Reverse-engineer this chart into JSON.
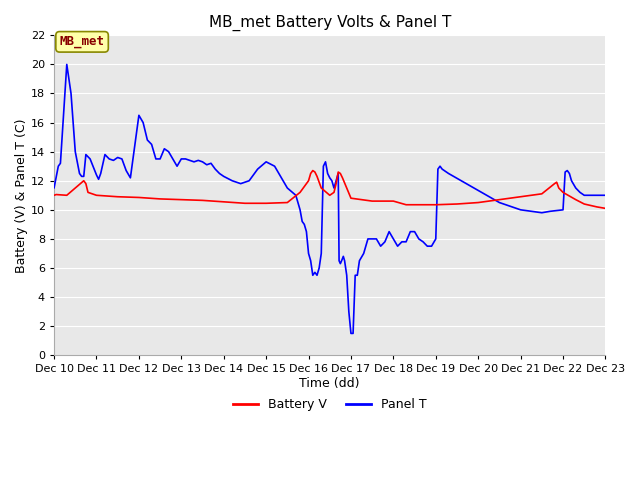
{
  "title": "MB_met Battery Volts & Panel T",
  "xlabel": "Time (dd)",
  "ylabel": "Battery (V) & Panel T (C)",
  "ylim": [
    0,
    22
  ],
  "yticks": [
    0,
    2,
    4,
    6,
    8,
    10,
    12,
    14,
    16,
    18,
    20,
    22
  ],
  "xlim": [
    0,
    13
  ],
  "xtick_labels": [
    "Dec 10",
    "Dec 11",
    "Dec 12",
    "Dec 13",
    "Dec 14",
    "Dec 15",
    "Dec 16",
    "Dec 17",
    "Dec 18",
    "Dec 19",
    "Dec 20",
    "Dec 21",
    "Dec 22",
    "Dec 23"
  ],
  "fig_bg_color": "#ffffff",
  "plot_bg_color": "#e8e8e8",
  "battery_color": "#ff0000",
  "panel_color": "#0000ff",
  "legend_label_battery": "Battery V",
  "legend_label_panel": "Panel T",
  "watermark_text": "MB_met",
  "watermark_bg": "#ffffaa",
  "watermark_border": "#888800",
  "watermark_text_color": "#880000",
  "title_fontsize": 11,
  "axis_label_fontsize": 9,
  "tick_fontsize": 8,
  "legend_fontsize": 9,
  "battery_pts": [
    [
      0.0,
      11.0
    ],
    [
      0.05,
      11.05
    ],
    [
      0.3,
      11.0
    ],
    [
      0.7,
      12.0
    ],
    [
      0.75,
      11.8
    ],
    [
      0.8,
      11.2
    ],
    [
      1.0,
      11.0
    ],
    [
      1.5,
      10.9
    ],
    [
      2.0,
      10.85
    ],
    [
      2.5,
      10.75
    ],
    [
      3.0,
      10.7
    ],
    [
      3.5,
      10.65
    ],
    [
      4.0,
      10.55
    ],
    [
      4.5,
      10.45
    ],
    [
      5.0,
      10.45
    ],
    [
      5.5,
      10.5
    ],
    [
      5.8,
      11.2
    ],
    [
      6.0,
      12.0
    ],
    [
      6.05,
      12.5
    ],
    [
      6.1,
      12.7
    ],
    [
      6.15,
      12.6
    ],
    [
      6.2,
      12.3
    ],
    [
      6.3,
      11.5
    ],
    [
      6.5,
      11.0
    ],
    [
      6.6,
      11.2
    ],
    [
      6.65,
      11.8
    ],
    [
      6.7,
      12.6
    ],
    [
      6.75,
      12.5
    ],
    [
      6.8,
      12.2
    ],
    [
      6.9,
      11.5
    ],
    [
      7.0,
      10.8
    ],
    [
      7.5,
      10.6
    ],
    [
      8.0,
      10.6
    ],
    [
      8.3,
      10.35
    ],
    [
      8.5,
      10.35
    ],
    [
      9.0,
      10.35
    ],
    [
      9.5,
      10.4
    ],
    [
      10.0,
      10.5
    ],
    [
      10.5,
      10.7
    ],
    [
      11.0,
      10.9
    ],
    [
      11.5,
      11.1
    ],
    [
      11.8,
      11.8
    ],
    [
      11.85,
      11.9
    ],
    [
      11.9,
      11.5
    ],
    [
      12.0,
      11.2
    ],
    [
      12.3,
      10.7
    ],
    [
      12.5,
      10.4
    ],
    [
      12.8,
      10.2
    ],
    [
      13.0,
      10.1
    ]
  ],
  "panel_pts": [
    [
      0.0,
      11.5
    ],
    [
      0.1,
      13.0
    ],
    [
      0.15,
      13.2
    ],
    [
      0.3,
      20.0
    ],
    [
      0.4,
      18.0
    ],
    [
      0.5,
      14.0
    ],
    [
      0.6,
      12.5
    ],
    [
      0.65,
      12.3
    ],
    [
      0.7,
      12.3
    ],
    [
      0.75,
      13.8
    ],
    [
      0.85,
      13.5
    ],
    [
      1.0,
      12.4
    ],
    [
      1.05,
      12.1
    ],
    [
      1.1,
      12.5
    ],
    [
      1.2,
      13.8
    ],
    [
      1.3,
      13.5
    ],
    [
      1.4,
      13.4
    ],
    [
      1.5,
      13.6
    ],
    [
      1.6,
      13.5
    ],
    [
      1.7,
      12.7
    ],
    [
      1.8,
      12.2
    ],
    [
      2.0,
      16.5
    ],
    [
      2.1,
      16.0
    ],
    [
      2.2,
      14.8
    ],
    [
      2.3,
      14.5
    ],
    [
      2.4,
      13.5
    ],
    [
      2.5,
      13.5
    ],
    [
      2.6,
      14.2
    ],
    [
      2.7,
      14.0
    ],
    [
      2.8,
      13.5
    ],
    [
      2.9,
      13.0
    ],
    [
      3.0,
      13.5
    ],
    [
      3.1,
      13.5
    ],
    [
      3.2,
      13.4
    ],
    [
      3.3,
      13.3
    ],
    [
      3.4,
      13.4
    ],
    [
      3.5,
      13.3
    ],
    [
      3.6,
      13.1
    ],
    [
      3.7,
      13.2
    ],
    [
      3.8,
      12.8
    ],
    [
      3.9,
      12.5
    ],
    [
      4.0,
      12.3
    ],
    [
      4.2,
      12.0
    ],
    [
      4.4,
      11.8
    ],
    [
      4.6,
      12.0
    ],
    [
      4.8,
      12.8
    ],
    [
      5.0,
      13.3
    ],
    [
      5.2,
      13.0
    ],
    [
      5.3,
      12.5
    ],
    [
      5.4,
      12.0
    ],
    [
      5.5,
      11.5
    ],
    [
      5.7,
      11.0
    ],
    [
      5.8,
      10.0
    ],
    [
      5.85,
      9.2
    ],
    [
      5.9,
      9.0
    ],
    [
      5.95,
      8.5
    ],
    [
      6.0,
      7.0
    ],
    [
      6.05,
      6.5
    ],
    [
      6.1,
      5.5
    ],
    [
      6.15,
      5.7
    ],
    [
      6.2,
      5.5
    ],
    [
      6.25,
      6.0
    ],
    [
      6.3,
      7.0
    ],
    [
      6.35,
      13.0
    ],
    [
      6.4,
      13.3
    ],
    [
      6.45,
      12.5
    ],
    [
      6.5,
      12.2
    ],
    [
      6.55,
      12.0
    ],
    [
      6.6,
      11.5
    ],
    [
      6.65,
      12.0
    ],
    [
      6.7,
      12.5
    ],
    [
      6.72,
      6.5
    ],
    [
      6.75,
      6.3
    ],
    [
      6.78,
      6.5
    ],
    [
      6.82,
      6.8
    ],
    [
      6.85,
      6.5
    ],
    [
      6.9,
      5.5
    ],
    [
      6.95,
      3.0
    ],
    [
      7.0,
      1.5
    ],
    [
      7.05,
      1.5
    ],
    [
      7.1,
      5.5
    ],
    [
      7.15,
      5.5
    ],
    [
      7.2,
      6.5
    ],
    [
      7.3,
      7.0
    ],
    [
      7.4,
      8.0
    ],
    [
      7.5,
      8.0
    ],
    [
      7.6,
      8.0
    ],
    [
      7.7,
      7.5
    ],
    [
      7.8,
      7.8
    ],
    [
      7.9,
      8.5
    ],
    [
      8.0,
      8.0
    ],
    [
      8.1,
      7.5
    ],
    [
      8.2,
      7.8
    ],
    [
      8.3,
      7.8
    ],
    [
      8.4,
      8.5
    ],
    [
      8.5,
      8.5
    ],
    [
      8.6,
      8.0
    ],
    [
      8.7,
      7.8
    ],
    [
      8.8,
      7.5
    ],
    [
      8.9,
      7.5
    ],
    [
      9.0,
      8.0
    ],
    [
      9.05,
      12.8
    ],
    [
      9.1,
      13.0
    ],
    [
      9.15,
      12.8
    ],
    [
      9.3,
      12.5
    ],
    [
      9.6,
      12.0
    ],
    [
      9.9,
      11.5
    ],
    [
      10.2,
      11.0
    ],
    [
      10.5,
      10.5
    ],
    [
      11.0,
      10.0
    ],
    [
      11.5,
      9.8
    ],
    [
      11.7,
      9.9
    ],
    [
      12.0,
      10.0
    ],
    [
      12.05,
      12.6
    ],
    [
      12.1,
      12.7
    ],
    [
      12.15,
      12.5
    ],
    [
      12.2,
      12.0
    ],
    [
      12.3,
      11.5
    ],
    [
      12.4,
      11.2
    ],
    [
      12.5,
      11.0
    ],
    [
      12.6,
      11.0
    ],
    [
      12.7,
      11.0
    ],
    [
      12.8,
      11.0
    ],
    [
      12.9,
      11.0
    ],
    [
      13.0,
      11.0
    ]
  ]
}
